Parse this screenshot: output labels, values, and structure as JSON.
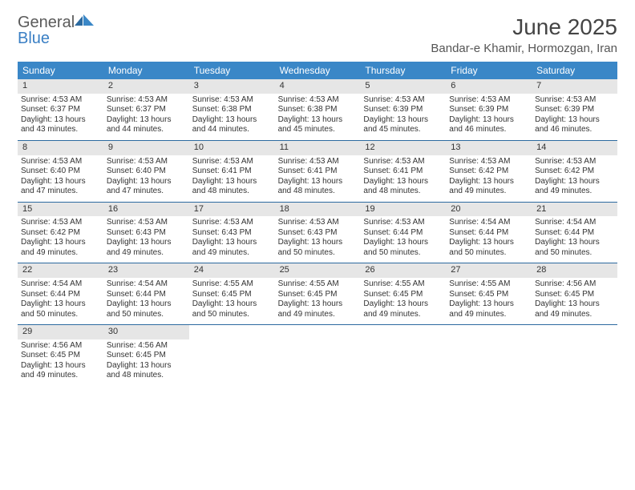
{
  "brand": {
    "general": "General",
    "blue": "Blue"
  },
  "title": "June 2025",
  "subtitle": "Bandar-e Khamir, Hormozgan, Iran",
  "colors": {
    "header_bg": "#3a87c7",
    "header_text": "#ffffff",
    "daynum_bg": "#e6e6e6",
    "rule": "#2c6aa0",
    "text": "#333333",
    "logo_gray": "#5a5a5a",
    "logo_blue": "#3a7fc4"
  },
  "fontsize": {
    "title": 28,
    "subtitle": 15,
    "dayhead": 12,
    "daynum": 11,
    "cell": 10
  },
  "day_headers": [
    "Sunday",
    "Monday",
    "Tuesday",
    "Wednesday",
    "Thursday",
    "Friday",
    "Saturday"
  ],
  "days": [
    {
      "n": "1",
      "sr": "4:53 AM",
      "ss": "6:37 PM",
      "dl": "13 hours and 43 minutes."
    },
    {
      "n": "2",
      "sr": "4:53 AM",
      "ss": "6:37 PM",
      "dl": "13 hours and 44 minutes."
    },
    {
      "n": "3",
      "sr": "4:53 AM",
      "ss": "6:38 PM",
      "dl": "13 hours and 44 minutes."
    },
    {
      "n": "4",
      "sr": "4:53 AM",
      "ss": "6:38 PM",
      "dl": "13 hours and 45 minutes."
    },
    {
      "n": "5",
      "sr": "4:53 AM",
      "ss": "6:39 PM",
      "dl": "13 hours and 45 minutes."
    },
    {
      "n": "6",
      "sr": "4:53 AM",
      "ss": "6:39 PM",
      "dl": "13 hours and 46 minutes."
    },
    {
      "n": "7",
      "sr": "4:53 AM",
      "ss": "6:39 PM",
      "dl": "13 hours and 46 minutes."
    },
    {
      "n": "8",
      "sr": "4:53 AM",
      "ss": "6:40 PM",
      "dl": "13 hours and 47 minutes."
    },
    {
      "n": "9",
      "sr": "4:53 AM",
      "ss": "6:40 PM",
      "dl": "13 hours and 47 minutes."
    },
    {
      "n": "10",
      "sr": "4:53 AM",
      "ss": "6:41 PM",
      "dl": "13 hours and 48 minutes."
    },
    {
      "n": "11",
      "sr": "4:53 AM",
      "ss": "6:41 PM",
      "dl": "13 hours and 48 minutes."
    },
    {
      "n": "12",
      "sr": "4:53 AM",
      "ss": "6:41 PM",
      "dl": "13 hours and 48 minutes."
    },
    {
      "n": "13",
      "sr": "4:53 AM",
      "ss": "6:42 PM",
      "dl": "13 hours and 49 minutes."
    },
    {
      "n": "14",
      "sr": "4:53 AM",
      "ss": "6:42 PM",
      "dl": "13 hours and 49 minutes."
    },
    {
      "n": "15",
      "sr": "4:53 AM",
      "ss": "6:42 PM",
      "dl": "13 hours and 49 minutes."
    },
    {
      "n": "16",
      "sr": "4:53 AM",
      "ss": "6:43 PM",
      "dl": "13 hours and 49 minutes."
    },
    {
      "n": "17",
      "sr": "4:53 AM",
      "ss": "6:43 PM",
      "dl": "13 hours and 49 minutes."
    },
    {
      "n": "18",
      "sr": "4:53 AM",
      "ss": "6:43 PM",
      "dl": "13 hours and 50 minutes."
    },
    {
      "n": "19",
      "sr": "4:53 AM",
      "ss": "6:44 PM",
      "dl": "13 hours and 50 minutes."
    },
    {
      "n": "20",
      "sr": "4:54 AM",
      "ss": "6:44 PM",
      "dl": "13 hours and 50 minutes."
    },
    {
      "n": "21",
      "sr": "4:54 AM",
      "ss": "6:44 PM",
      "dl": "13 hours and 50 minutes."
    },
    {
      "n": "22",
      "sr": "4:54 AM",
      "ss": "6:44 PM",
      "dl": "13 hours and 50 minutes."
    },
    {
      "n": "23",
      "sr": "4:54 AM",
      "ss": "6:44 PM",
      "dl": "13 hours and 50 minutes."
    },
    {
      "n": "24",
      "sr": "4:55 AM",
      "ss": "6:45 PM",
      "dl": "13 hours and 50 minutes."
    },
    {
      "n": "25",
      "sr": "4:55 AM",
      "ss": "6:45 PM",
      "dl": "13 hours and 49 minutes."
    },
    {
      "n": "26",
      "sr": "4:55 AM",
      "ss": "6:45 PM",
      "dl": "13 hours and 49 minutes."
    },
    {
      "n": "27",
      "sr": "4:55 AM",
      "ss": "6:45 PM",
      "dl": "13 hours and 49 minutes."
    },
    {
      "n": "28",
      "sr": "4:56 AM",
      "ss": "6:45 PM",
      "dl": "13 hours and 49 minutes."
    },
    {
      "n": "29",
      "sr": "4:56 AM",
      "ss": "6:45 PM",
      "dl": "13 hours and 49 minutes."
    },
    {
      "n": "30",
      "sr": "4:56 AM",
      "ss": "6:45 PM",
      "dl": "13 hours and 48 minutes."
    }
  ],
  "labels": {
    "sunrise": "Sunrise: ",
    "sunset": "Sunset: ",
    "daylight": "Daylight: "
  }
}
